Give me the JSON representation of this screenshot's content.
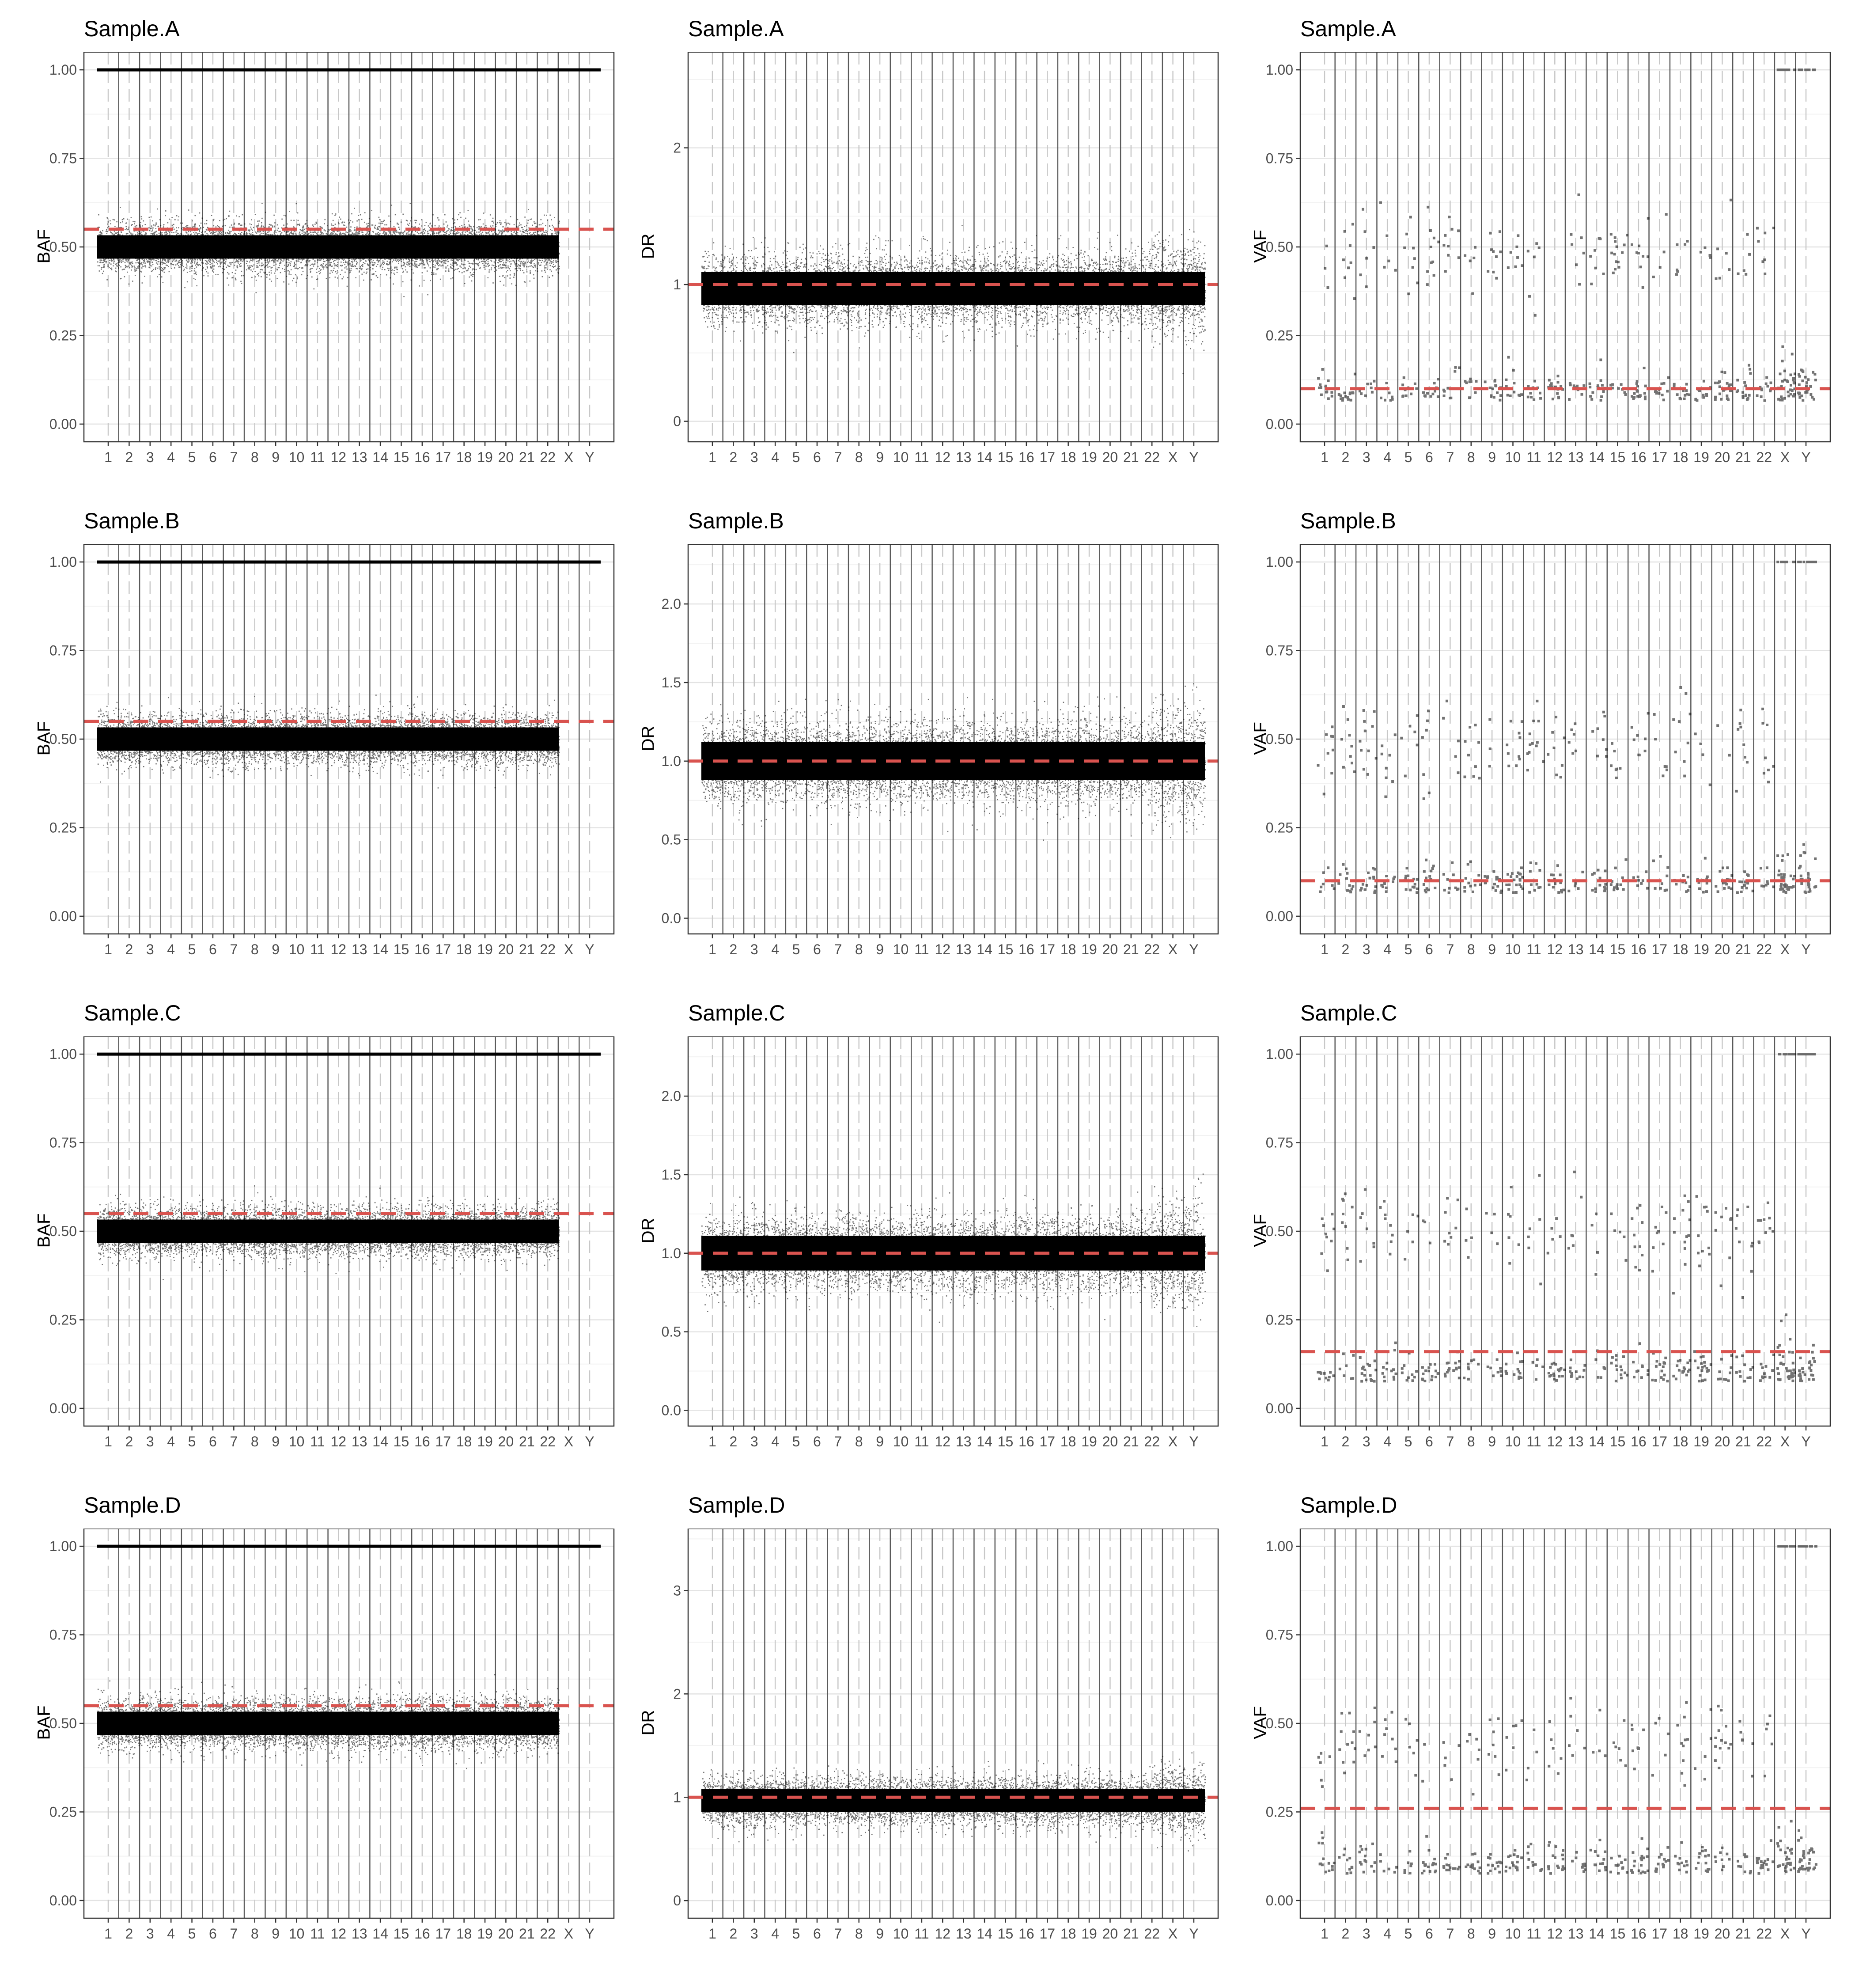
{
  "chart_data": [
    {
      "type": "scatter",
      "title": "Sample.A",
      "xlabel": "",
      "ylabel": "BAF",
      "ylim": [
        -0.05,
        1.05
      ],
      "yticks": [
        "0.00",
        "0.25",
        "0.50",
        "0.75",
        "1.00"
      ],
      "x_categories": [
        "1",
        "2",
        "3",
        "4",
        "5",
        "6",
        "7",
        "8",
        "9",
        "10",
        "11",
        "12",
        "13",
        "14",
        "15",
        "16",
        "17",
        "18",
        "19",
        "20",
        "21",
        "22",
        "X",
        "Y"
      ],
      "reference_lines": [
        {
          "value": 1.0,
          "color": "#000000",
          "style": "solid"
        },
        {
          "value": 0.55,
          "color": "#d9534f",
          "style": "dashed"
        }
      ],
      "cloud": {
        "center": 0.5,
        "spread": 0.06,
        "x_span": "1-22"
      },
      "grid": true
    },
    {
      "type": "scatter",
      "title": "Sample.A",
      "xlabel": "",
      "ylabel": "DR",
      "ylim": [
        -0.15,
        2.7
      ],
      "yticks": [
        "0",
        "1",
        "2"
      ],
      "x_categories": [
        "1",
        "2",
        "3",
        "4",
        "5",
        "6",
        "7",
        "8",
        "9",
        "10",
        "11",
        "12",
        "13",
        "14",
        "15",
        "16",
        "17",
        "18",
        "19",
        "20",
        "21",
        "22",
        "X",
        "Y"
      ],
      "reference_lines": [
        {
          "value": 1.0,
          "color": "#d9534f",
          "style": "dashed"
        }
      ],
      "cloud": {
        "center": 0.97,
        "spread": 0.22,
        "x_span": "1-Y"
      },
      "grid": true
    },
    {
      "type": "scatter",
      "title": "Sample.A",
      "xlabel": "",
      "ylabel": "VAF",
      "ylim": [
        -0.05,
        1.05
      ],
      "yticks": [
        "0.00",
        "0.25",
        "0.50",
        "0.75",
        "1.00"
      ],
      "x_categories": [
        "1",
        "2",
        "3",
        "4",
        "5",
        "6",
        "7",
        "8",
        "9",
        "10",
        "11",
        "12",
        "13",
        "14",
        "15",
        "16",
        "17",
        "18",
        "19",
        "20",
        "21",
        "22",
        "X",
        "Y"
      ],
      "reference_lines": [
        {
          "value": 0.1,
          "color": "#d9534f",
          "style": "dashed"
        }
      ],
      "variants": {
        "low": 0.07,
        "het": 0.48,
        "hom_at_XY": true
      },
      "grid": true
    },
    {
      "type": "scatter",
      "title": "Sample.B",
      "xlabel": "",
      "ylabel": "BAF",
      "ylim": [
        -0.05,
        1.05
      ],
      "yticks": [
        "0.00",
        "0.25",
        "0.50",
        "0.75",
        "1.00"
      ],
      "x_categories": [
        "1",
        "2",
        "3",
        "4",
        "5",
        "6",
        "7",
        "8",
        "9",
        "10",
        "11",
        "12",
        "13",
        "14",
        "15",
        "16",
        "17",
        "18",
        "19",
        "20",
        "21",
        "22",
        "X",
        "Y"
      ],
      "reference_lines": [
        {
          "value": 1.0,
          "color": "#000000",
          "style": "solid"
        },
        {
          "value": 0.55,
          "color": "#d9534f",
          "style": "dashed"
        }
      ],
      "cloud": {
        "center": 0.5,
        "spread": 0.06,
        "x_span": "1-22"
      },
      "grid": true
    },
    {
      "type": "scatter",
      "title": "Sample.B",
      "xlabel": "",
      "ylabel": "DR",
      "ylim": [
        -0.1,
        2.38
      ],
      "yticks": [
        "0.0",
        "0.5",
        "1.0",
        "1.5",
        "2.0"
      ],
      "x_categories": [
        "1",
        "2",
        "3",
        "4",
        "5",
        "6",
        "7",
        "8",
        "9",
        "10",
        "11",
        "12",
        "13",
        "14",
        "15",
        "16",
        "17",
        "18",
        "19",
        "20",
        "21",
        "22",
        "X",
        "Y"
      ],
      "reference_lines": [
        {
          "value": 1.0,
          "color": "#d9534f",
          "style": "dashed"
        }
      ],
      "cloud": {
        "center": 1.0,
        "spread": 0.22,
        "x_span": "1-Y"
      },
      "grid": true
    },
    {
      "type": "scatter",
      "title": "Sample.B",
      "xlabel": "",
      "ylabel": "VAF",
      "ylim": [
        -0.05,
        1.05
      ],
      "yticks": [
        "0.00",
        "0.25",
        "0.50",
        "0.75",
        "1.00"
      ],
      "x_categories": [
        "1",
        "2",
        "3",
        "4",
        "5",
        "6",
        "7",
        "8",
        "9",
        "10",
        "11",
        "12",
        "13",
        "14",
        "15",
        "16",
        "17",
        "18",
        "19",
        "20",
        "21",
        "22",
        "X",
        "Y"
      ],
      "reference_lines": [
        {
          "value": 0.1,
          "color": "#d9534f",
          "style": "dashed"
        }
      ],
      "variants": {
        "low": 0.07,
        "het": 0.48,
        "hom_at_XY": true
      },
      "grid": true
    },
    {
      "type": "scatter",
      "title": "Sample.C",
      "xlabel": "",
      "ylabel": "BAF",
      "ylim": [
        -0.05,
        1.05
      ],
      "yticks": [
        "0.00",
        "0.25",
        "0.50",
        "0.75",
        "1.00"
      ],
      "x_categories": [
        "1",
        "2",
        "3",
        "4",
        "5",
        "6",
        "7",
        "8",
        "9",
        "10",
        "11",
        "12",
        "13",
        "14",
        "15",
        "16",
        "17",
        "18",
        "19",
        "20",
        "21",
        "22",
        "X",
        "Y"
      ],
      "reference_lines": [
        {
          "value": 1.0,
          "color": "#000000",
          "style": "solid"
        },
        {
          "value": 0.55,
          "color": "#d9534f",
          "style": "dashed"
        }
      ],
      "cloud": {
        "center": 0.5,
        "spread": 0.06,
        "x_span": "1-22"
      },
      "grid": true
    },
    {
      "type": "scatter",
      "title": "Sample.C",
      "xlabel": "",
      "ylabel": "DR",
      "ylim": [
        -0.1,
        2.38
      ],
      "yticks": [
        "0.0",
        "0.5",
        "1.0",
        "1.5",
        "2.0"
      ],
      "x_categories": [
        "1",
        "2",
        "3",
        "4",
        "5",
        "6",
        "7",
        "8",
        "9",
        "10",
        "11",
        "12",
        "13",
        "14",
        "15",
        "16",
        "17",
        "18",
        "19",
        "20",
        "21",
        "22",
        "X",
        "Y"
      ],
      "reference_lines": [
        {
          "value": 1.0,
          "color": "#d9534f",
          "style": "dashed"
        }
      ],
      "cloud": {
        "center": 1.0,
        "spread": 0.2,
        "x_span": "1-Y"
      },
      "grid": true
    },
    {
      "type": "scatter",
      "title": "Sample.C",
      "xlabel": "",
      "ylabel": "VAF",
      "ylim": [
        -0.05,
        1.05
      ],
      "yticks": [
        "0.00",
        "0.25",
        "0.50",
        "0.75",
        "1.00"
      ],
      "x_categories": [
        "1",
        "2",
        "3",
        "4",
        "5",
        "6",
        "7",
        "8",
        "9",
        "10",
        "11",
        "12",
        "13",
        "14",
        "15",
        "16",
        "17",
        "18",
        "19",
        "20",
        "21",
        "22",
        "X",
        "Y"
      ],
      "reference_lines": [
        {
          "value": 0.16,
          "color": "#d9534f",
          "style": "dashed"
        }
      ],
      "variants": {
        "low": 0.08,
        "het": 0.5,
        "hom_at_XY": true
      },
      "grid": true
    },
    {
      "type": "scatter",
      "title": "Sample.D",
      "xlabel": "",
      "ylabel": "BAF",
      "ylim": [
        -0.05,
        1.05
      ],
      "yticks": [
        "0.00",
        "0.25",
        "0.50",
        "0.75",
        "1.00"
      ],
      "x_categories": [
        "1",
        "2",
        "3",
        "4",
        "5",
        "6",
        "7",
        "8",
        "9",
        "10",
        "11",
        "12",
        "13",
        "14",
        "15",
        "16",
        "17",
        "18",
        "19",
        "20",
        "21",
        "22",
        "X",
        "Y"
      ],
      "reference_lines": [
        {
          "value": 1.0,
          "color": "#000000",
          "style": "solid"
        },
        {
          "value": 0.55,
          "color": "#d9534f",
          "style": "dashed"
        }
      ],
      "cloud": {
        "center": 0.5,
        "spread": 0.06,
        "x_span": "1-22"
      },
      "grid": true
    },
    {
      "type": "scatter",
      "title": "Sample.D",
      "xlabel": "",
      "ylabel": "DR",
      "ylim": [
        -0.17,
        3.6
      ],
      "yticks": [
        "0",
        "1",
        "2",
        "3"
      ],
      "x_categories": [
        "1",
        "2",
        "3",
        "4",
        "5",
        "6",
        "7",
        "8",
        "9",
        "10",
        "11",
        "12",
        "13",
        "14",
        "15",
        "16",
        "17",
        "18",
        "19",
        "20",
        "21",
        "22",
        "X",
        "Y"
      ],
      "reference_lines": [
        {
          "value": 1.0,
          "color": "#d9534f",
          "style": "dashed"
        }
      ],
      "cloud": {
        "center": 0.97,
        "spread": 0.2,
        "x_span": "1-Y"
      },
      "grid": true
    },
    {
      "type": "scatter",
      "title": "Sample.D",
      "xlabel": "",
      "ylabel": "VAF",
      "ylim": [
        -0.05,
        1.05
      ],
      "yticks": [
        "0.00",
        "0.25",
        "0.50",
        "0.75",
        "1.00"
      ],
      "x_categories": [
        "1",
        "2",
        "3",
        "4",
        "5",
        "6",
        "7",
        "8",
        "9",
        "10",
        "11",
        "12",
        "13",
        "14",
        "15",
        "16",
        "17",
        "18",
        "19",
        "20",
        "21",
        "22",
        "X",
        "Y"
      ],
      "reference_lines": [
        {
          "value": 0.26,
          "color": "#d9534f",
          "style": "dashed"
        }
      ],
      "variants": {
        "low": 0.08,
        "het": 0.45,
        "hom_at_XY": true
      },
      "grid": true
    }
  ]
}
